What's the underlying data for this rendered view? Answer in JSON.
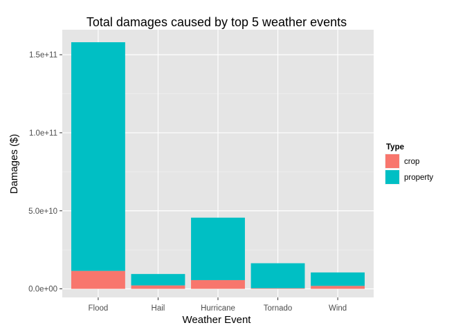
{
  "chart_data": {
    "type": "bar",
    "stacked": true,
    "title": "Total damages caused by top 5 weather events",
    "xlabel": "Weather Event",
    "ylabel": "Damages ($)",
    "categories": [
      "Flood",
      "Hail",
      "Hurricane",
      "Tornado",
      "Wind"
    ],
    "series": [
      {
        "name": "crop",
        "color": "#F8766D",
        "values": [
          11500000000.0,
          2200000000.0,
          5600000000.0,
          400000000.0,
          1900000000.0
        ]
      },
      {
        "name": "property",
        "color": "#00BFC4",
        "values": [
          146500000000.0,
          7300000000.0,
          40000000000.0,
          16000000000.0,
          8600000000.0
        ]
      }
    ],
    "ylim": [
      -5500000000.0,
      166000000000.0
    ],
    "yticks": [
      {
        "value": 0,
        "label": "0.0e+00"
      },
      {
        "value": 50000000000.0,
        "label": "5.0e+10"
      },
      {
        "value": 100000000000.0,
        "label": "1.0e+11"
      },
      {
        "value": 150000000000.0,
        "label": "1.5e+11"
      }
    ],
    "grid": true,
    "legend": {
      "title": "Type",
      "position": "right"
    },
    "panel_background": "#E5E5E5"
  }
}
